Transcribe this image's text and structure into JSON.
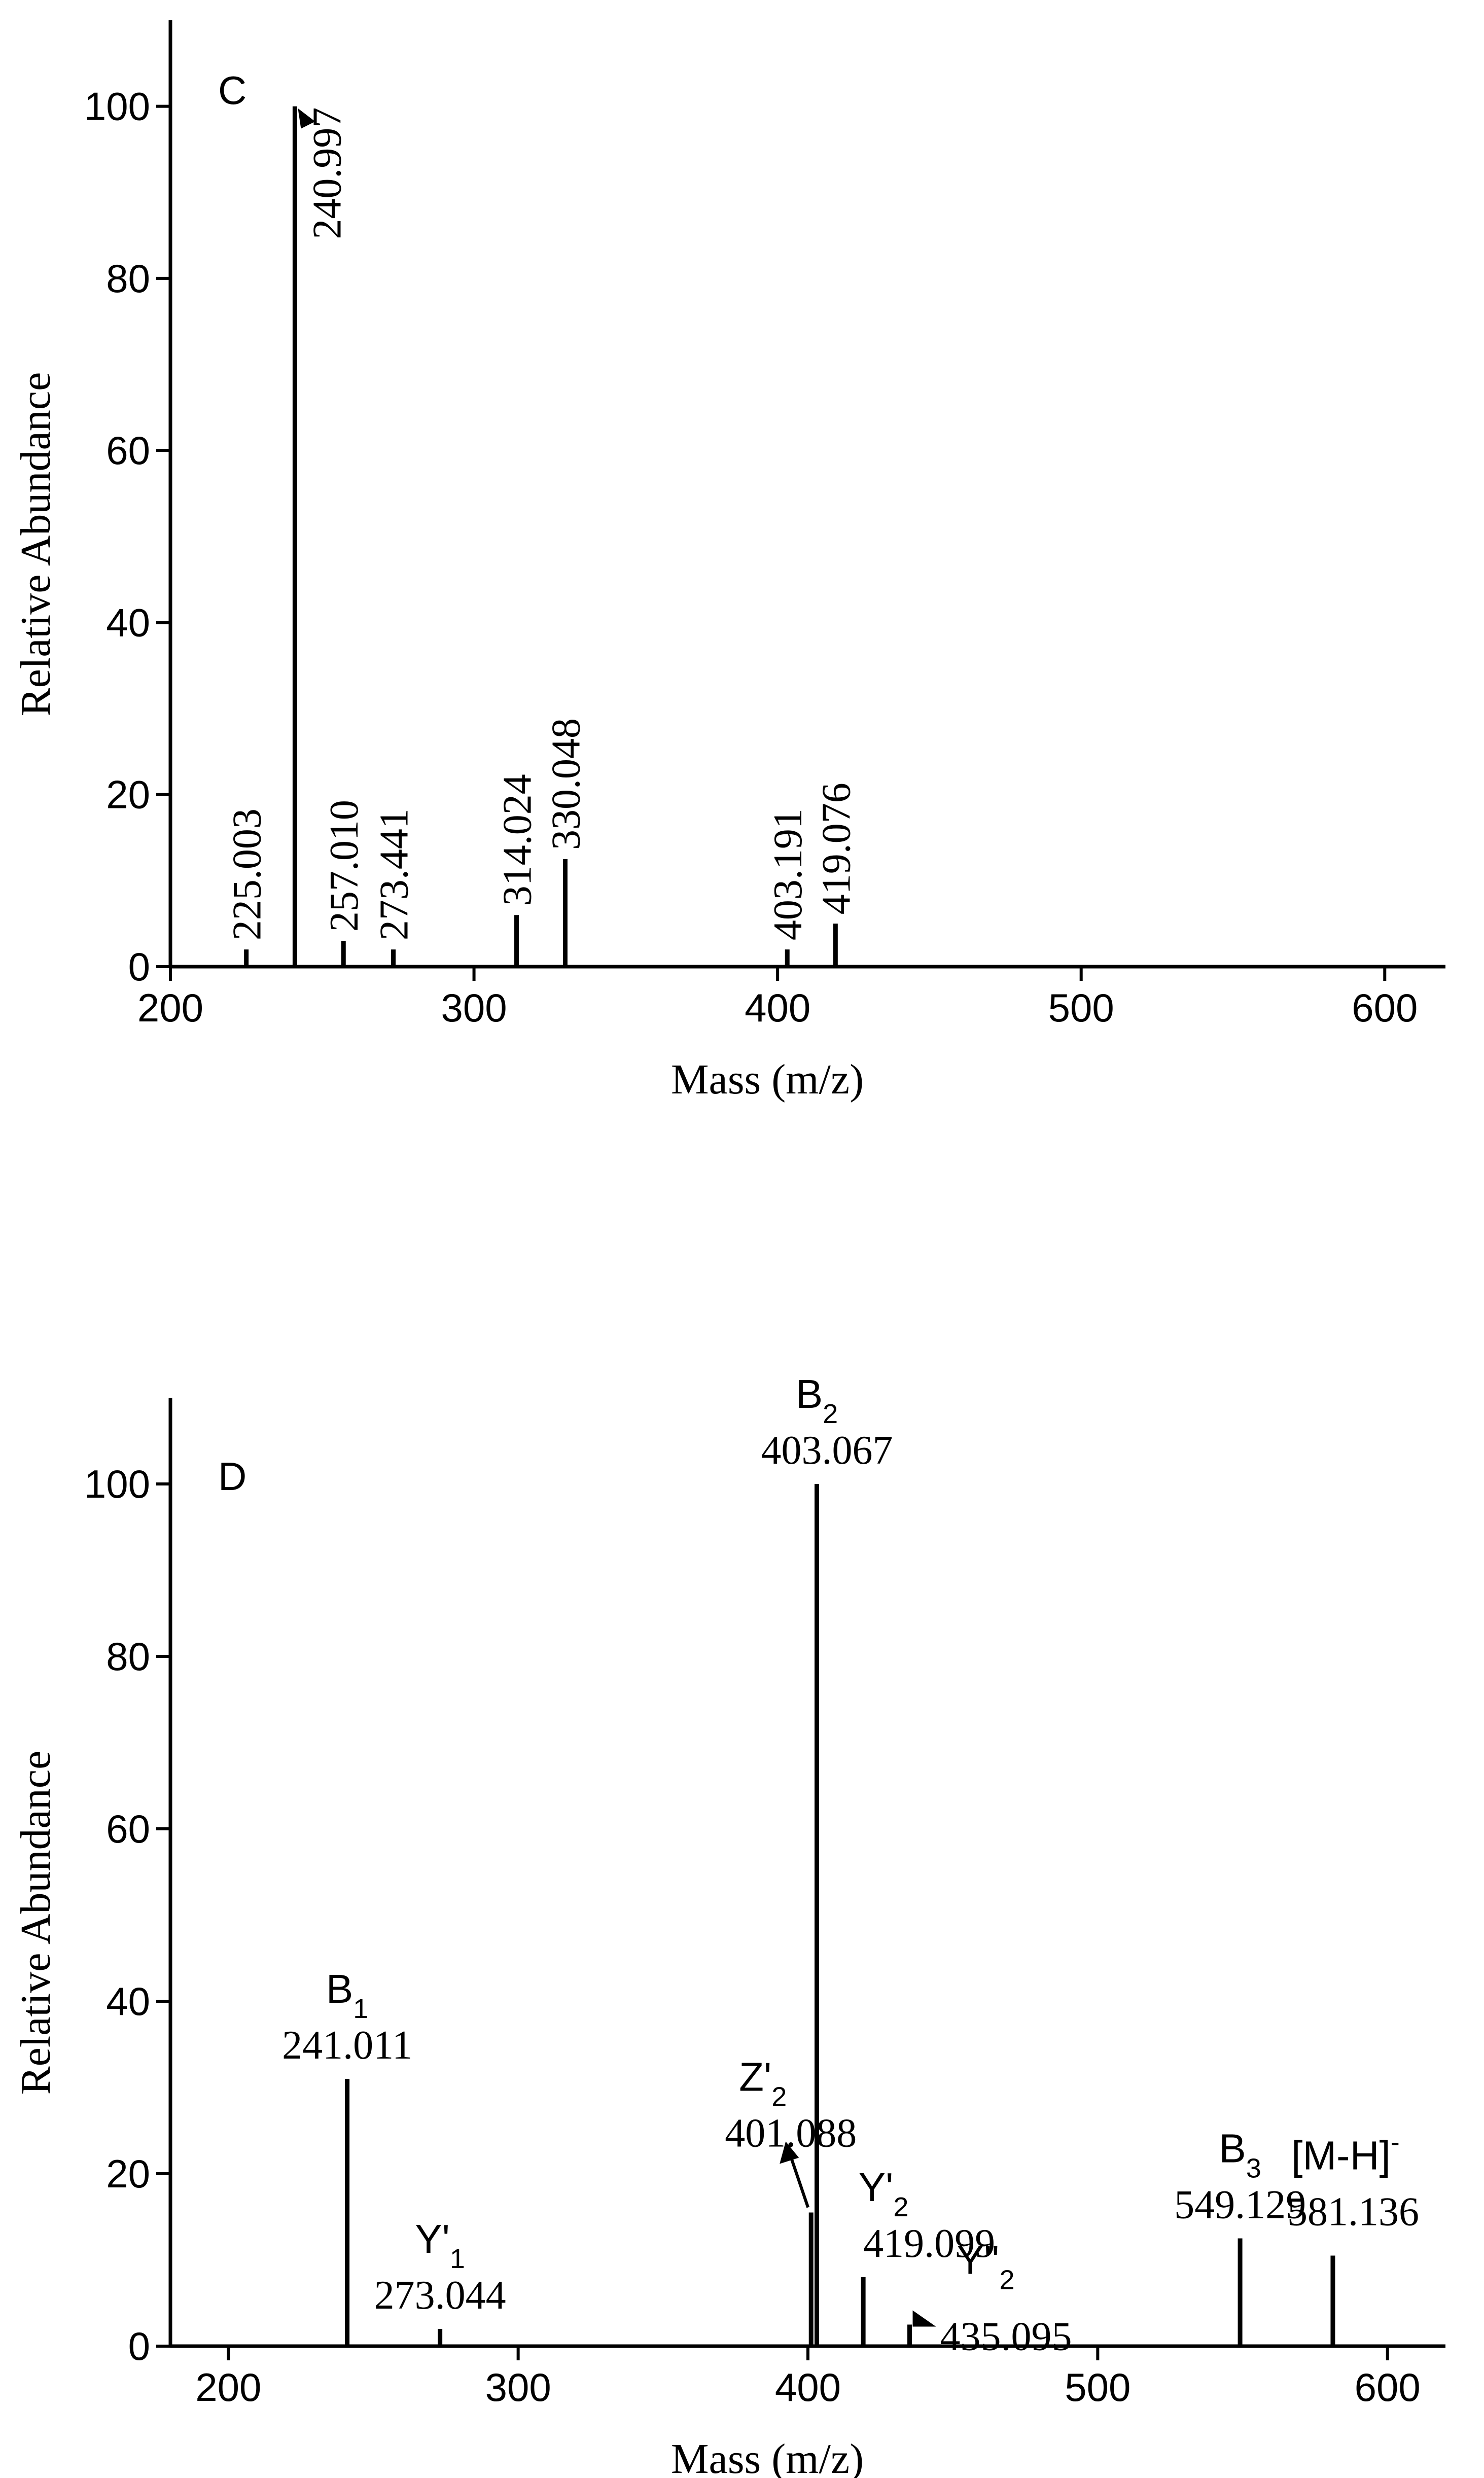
{
  "chart_data": [
    {
      "type": "bar",
      "panel_label": "C",
      "xlabel": "Mass (m/z)",
      "ylabel": "Relative Abundance",
      "xlim": [
        200,
        620
      ],
      "ylim": [
        0,
        110
      ],
      "xticks": [
        200,
        300,
        400,
        500,
        600
      ],
      "yticks": [
        0,
        20,
        40,
        60,
        80,
        100
      ],
      "grid": false,
      "peaks": [
        {
          "x": 225.003,
          "y": 2,
          "label": "225.003"
        },
        {
          "x": 240.997,
          "y": 100,
          "label": "240.997"
        },
        {
          "x": 257.01,
          "y": 3,
          "label": "257.010"
        },
        {
          "x": 273.441,
          "y": 2,
          "label": "273.441"
        },
        {
          "x": 314.024,
          "y": 6,
          "label": "314.024"
        },
        {
          "x": 330.048,
          "y": 12.5,
          "label": "330.048"
        },
        {
          "x": 403.191,
          "y": 2,
          "label": "403.191"
        },
        {
          "x": 419.076,
          "y": 5,
          "label": "419.076"
        }
      ]
    },
    {
      "type": "bar",
      "panel_label": "D",
      "xlabel": "Mass (m/z)",
      "ylabel": "Relative Abundance",
      "xlim": [
        180,
        620
      ],
      "ylim": [
        0,
        110
      ],
      "xticks": [
        200,
        300,
        400,
        500,
        600
      ],
      "yticks": [
        0,
        20,
        40,
        60,
        80,
        100
      ],
      "grid": false,
      "peaks": [
        {
          "x": 241.011,
          "y": 31,
          "label": "241.011",
          "ion": "B",
          "ion_sub": "1",
          "ion_sup": ""
        },
        {
          "x": 273.044,
          "y": 2,
          "label": "273.044",
          "ion": "Y'",
          "ion_sub": "1",
          "ion_sup": ""
        },
        {
          "x": 401.088,
          "y": 15.5,
          "label": "401.088",
          "ion": "Z'",
          "ion_sub": "2",
          "ion_sup": ""
        },
        {
          "x": 403.067,
          "y": 100,
          "label": "403.067",
          "ion": "B",
          "ion_sub": "2",
          "ion_sup": ""
        },
        {
          "x": 419.099,
          "y": 8,
          "label": "419.099",
          "ion": "Y'",
          "ion_sub": "2",
          "ion_sup": ""
        },
        {
          "x": 435.095,
          "y": 2.5,
          "label": "435.095",
          "ion": "Y''",
          "ion_sub": "2",
          "ion_sup": ""
        },
        {
          "x": 549.129,
          "y": 12.5,
          "label": "549.129",
          "ion": "B",
          "ion_sub": "3",
          "ion_sup": ""
        },
        {
          "x": 581.136,
          "y": 10.5,
          "label": "581.136",
          "ion": "[M-H]",
          "ion_sub": "",
          "ion_sup": "-"
        }
      ]
    }
  ]
}
